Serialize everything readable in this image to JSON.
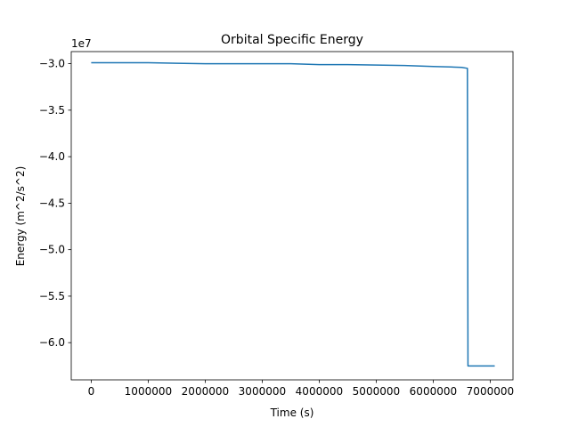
{
  "chart_data": {
    "type": "line",
    "title": "Orbital Specific Energy",
    "xlabel": "Time (s)",
    "ylabel": "Energy (m^2/s^2)",
    "y_offset_label": "1e7",
    "xlim": [
      -350000,
      7400000
    ],
    "ylim": [
      -6.4,
      -2.87
    ],
    "xticks": [
      0,
      1000000,
      2000000,
      3000000,
      4000000,
      5000000,
      6000000,
      7000000
    ],
    "xtick_labels": [
      "0",
      "1000000",
      "2000000",
      "3000000",
      "4000000",
      "5000000",
      "6000000",
      "7000000"
    ],
    "yticks": [
      -3.0,
      -3.5,
      -4.0,
      -4.5,
      -5.0,
      -5.5,
      -6.0
    ],
    "ytick_labels": [
      "−3.0",
      "−3.5",
      "−4.0",
      "−4.5",
      "−5.0",
      "−5.5",
      "−6.0"
    ],
    "grid": false,
    "series": [
      {
        "color": "#1f77b4",
        "points": [
          [
            0,
            -2.99
          ],
          [
            500000,
            -2.99
          ],
          [
            1000000,
            -2.99
          ],
          [
            1500000,
            -2.995
          ],
          [
            2000000,
            -3.0
          ],
          [
            2500000,
            -3.0
          ],
          [
            3000000,
            -3.0
          ],
          [
            3500000,
            -3.0
          ],
          [
            4000000,
            -3.01
          ],
          [
            4500000,
            -3.01
          ],
          [
            5000000,
            -3.015
          ],
          [
            5500000,
            -3.02
          ],
          [
            6000000,
            -3.03
          ],
          [
            6300000,
            -3.035
          ],
          [
            6500000,
            -3.04
          ],
          [
            6600000,
            -3.05
          ],
          [
            6610000,
            -6.25
          ],
          [
            7080000,
            -6.25
          ]
        ]
      }
    ]
  }
}
